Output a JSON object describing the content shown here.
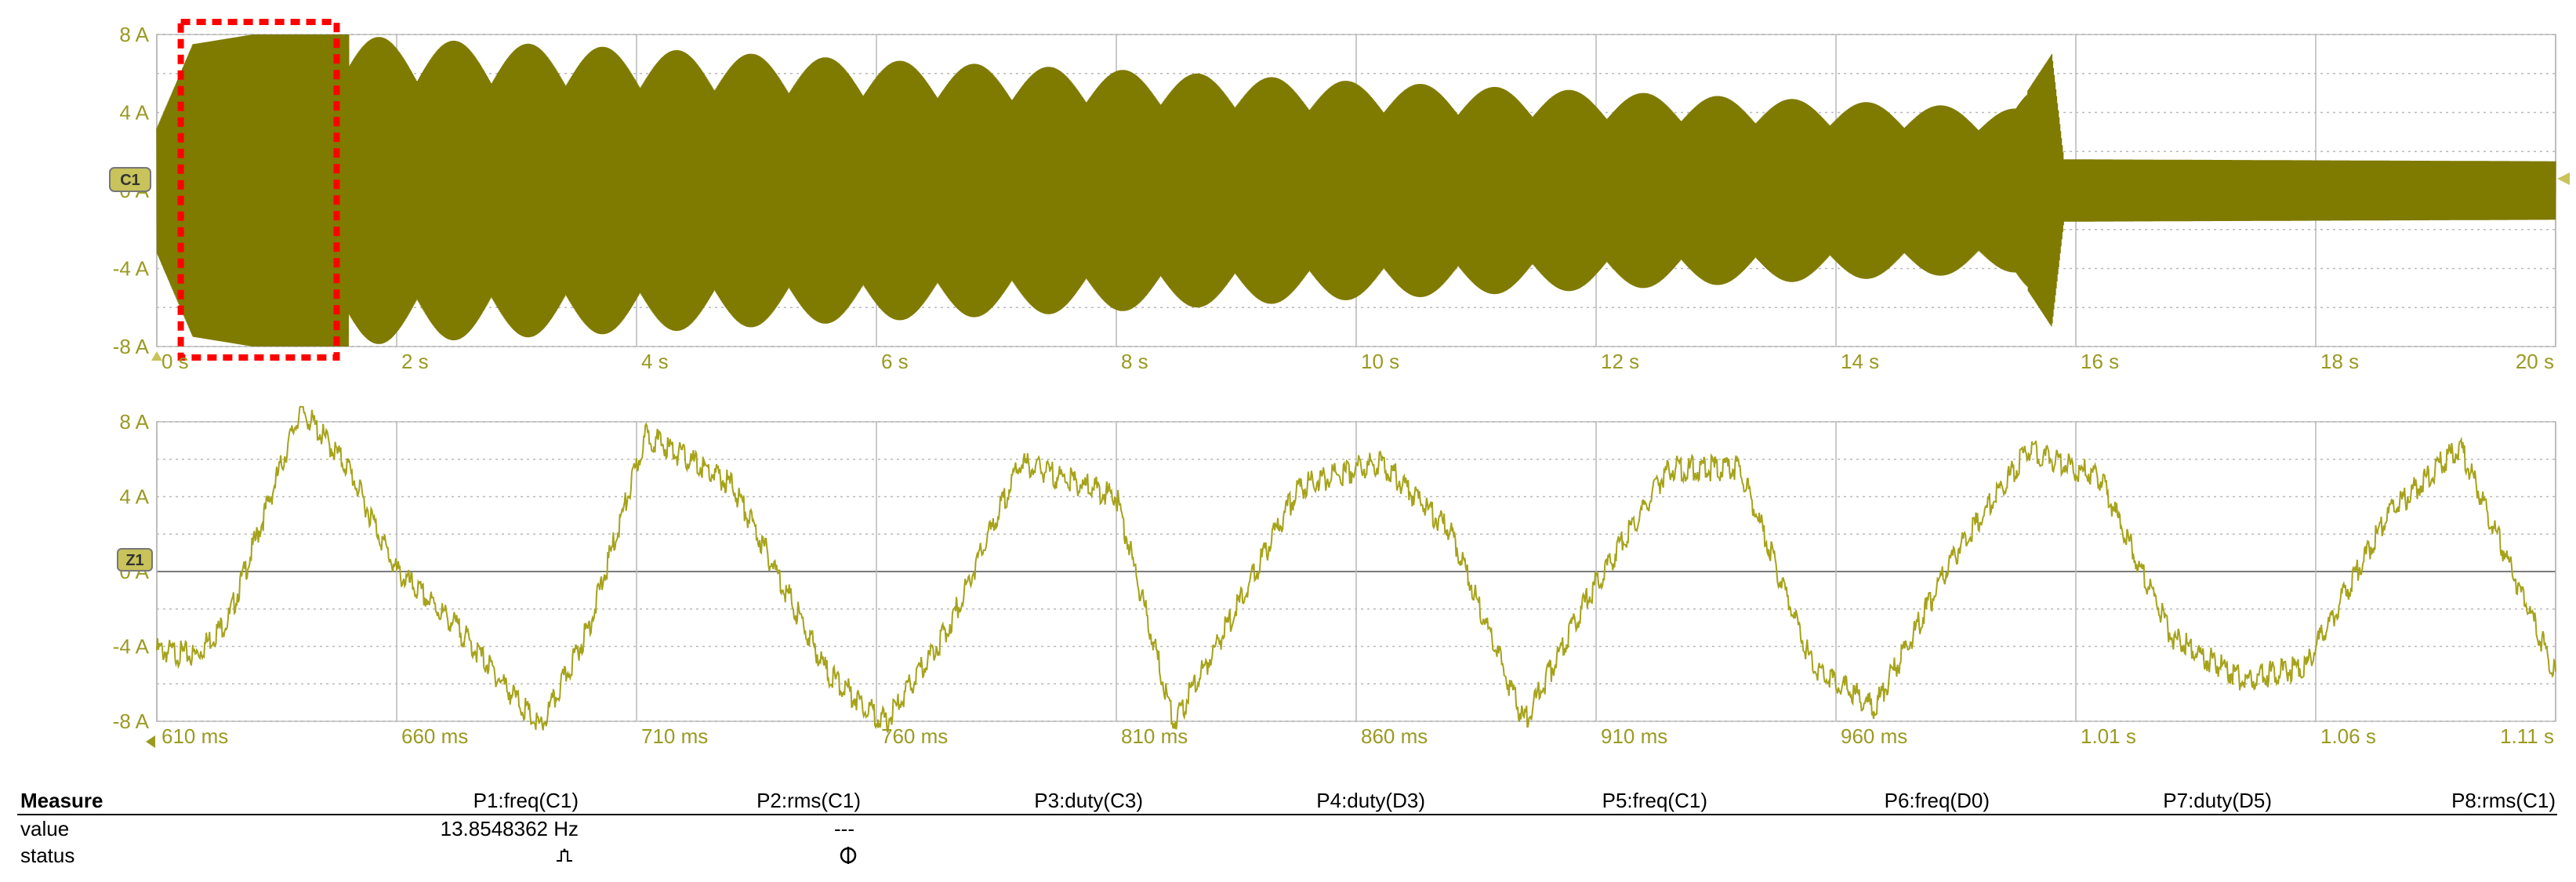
{
  "colors": {
    "trace": "#7f7a00",
    "trace_light": "#a6a31a",
    "label": "#9a9a22",
    "grid": "#b9b9b9",
    "marker_box": "#ff0000"
  },
  "chart_data": [
    {
      "type": "line",
      "name": "overview",
      "channel_tag": "C1",
      "y_unit": "A",
      "ylim": [
        -8,
        8
      ],
      "y_ticks": [
        "8 A",
        "4 A",
        "0 A",
        "-4 A",
        "-8 A"
      ],
      "x_ticks": [
        "0 s",
        "2 s",
        "4 s",
        "6 s",
        "8 s",
        "10 s",
        "12 s",
        "14 s",
        "16 s",
        "18 s",
        "20 s"
      ],
      "xlim": [
        0,
        20
      ],
      "envelope": {
        "t": [
          0,
          0.3,
          0.8,
          1.2,
          1.6,
          2.0,
          4,
          6,
          8,
          10,
          12,
          14,
          15.5,
          15.8,
          15.9,
          20
        ],
        "amp": [
          3.2,
          7.5,
          8.0,
          8.0,
          8.0,
          7.8,
          7.3,
          6.7,
          6.2,
          5.6,
          5.1,
          4.6,
          4.2,
          7.0,
          1.6,
          1.5
        ]
      },
      "zoom_window_s": [
        0.2,
        1.5
      ],
      "grid": true
    },
    {
      "type": "line",
      "name": "zoom",
      "channel_tag": "Z1",
      "y_unit": "A",
      "ylim": [
        -8,
        8
      ],
      "y_ticks": [
        "8 A",
        "4 A",
        "0 A",
        "-4 A",
        "-8 A"
      ],
      "x_ticks": [
        "610 ms",
        "660 ms",
        "710 ms",
        "760 ms",
        "810 ms",
        "860 ms",
        "910 ms",
        "960 ms",
        "1.01 s",
        "1.06 s",
        "1.11 s"
      ],
      "xlim_ms": [
        610,
        1110
      ],
      "samples": {
        "t_ms": [
          610,
          618,
          625,
          640,
          650,
          660,
          672,
          690,
          700,
          712,
          730,
          750,
          762,
          775,
          790,
          810,
          822,
          835,
          848,
          865,
          880,
          895,
          908,
          925,
          940,
          955,
          968,
          985,
          1000,
          1015,
          1030,
          1045,
          1058,
          1075,
          1090,
          1110
        ],
        "a": [
          -4.2,
          -4.5,
          -2.5,
          8.7,
          5.5,
          0.0,
          -2.8,
          -8.4,
          -3.0,
          7.3,
          4.6,
          -5.5,
          -8.1,
          -3.0,
          5.8,
          4.0,
          -8.1,
          -2.0,
          4.5,
          5.9,
          2.0,
          -8.1,
          -1.5,
          5.5,
          5.5,
          -5.0,
          -7.3,
          1.0,
          6.5,
          5.0,
          -3.5,
          -5.8,
          -5.0,
          3.0,
          6.7,
          -5.5
        ]
      },
      "grid": true
    }
  ],
  "measure": {
    "title": "Measure",
    "row_labels": [
      "value",
      "status"
    ],
    "columns": [
      "P1:freq(C1)",
      "P2:rms(C1)",
      "P3:duty(C3)",
      "P4:duty(D3)",
      "P5:freq(C1)",
      "P6:freq(D0)",
      "P7:duty(D5)",
      "P8:rms(C1)"
    ],
    "p1_value": "13.8548362 Hz",
    "p2_value": "---",
    "p1_status_icon": "pulse-icon",
    "p2_status_icon": "warning-icon"
  }
}
